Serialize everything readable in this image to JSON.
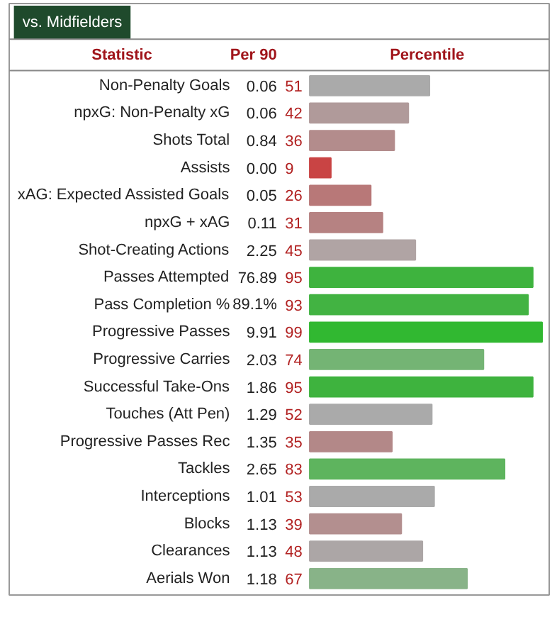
{
  "chart_data": {
    "type": "bar",
    "orientation": "horizontal",
    "title": "vs. Midfielders",
    "ylabel": "Statistic",
    "xlabel": "Percentile",
    "xlim": [
      0,
      100
    ],
    "tick_labels": false,
    "grid": false,
    "data_labels": true,
    "categories": [
      "Non-Penalty Goals",
      "npxG: Non-Penalty xG",
      "Shots Total",
      "Assists",
      "xAG: Expected Assisted Goals",
      "npxG + xAG",
      "Shot-Creating Actions",
      "Passes Attempted",
      "Pass Completion %",
      "Progressive Passes",
      "Progressive Carries",
      "Successful Take-Ons",
      "Touches (Att Pen)",
      "Progressive Passes Rec",
      "Tackles",
      "Interceptions",
      "Blocks",
      "Clearances",
      "Aerials Won"
    ],
    "values": [
      51,
      42,
      36,
      9,
      26,
      31,
      45,
      95,
      93,
      99,
      74,
      95,
      52,
      35,
      83,
      53,
      39,
      48,
      67
    ],
    "colors": [
      "#aaaaaa",
      "#b09a9a",
      "#b38c8c",
      "#c94444",
      "#b87878",
      "#b68282",
      "#b0a4a4",
      "#3eb33e",
      "#42b342",
      "#31b831",
      "#74b474",
      "#3eb33e",
      "#aaaaaa",
      "#b38888",
      "#5eb45e",
      "#aaaaaa",
      "#b38f8f",
      "#aca6a6",
      "#88b388"
    ],
    "annotations": [
      "Per 90",
      "0.06",
      "0.06",
      "0.84",
      "0.00",
      "0.05",
      "0.11",
      "2.25",
      "76.89",
      "89.1%",
      "9.91",
      "2.03",
      "1.86",
      "1.29",
      "1.35",
      "2.65",
      "1.01",
      "1.13",
      "1.13",
      "1.18"
    ]
  }
}
